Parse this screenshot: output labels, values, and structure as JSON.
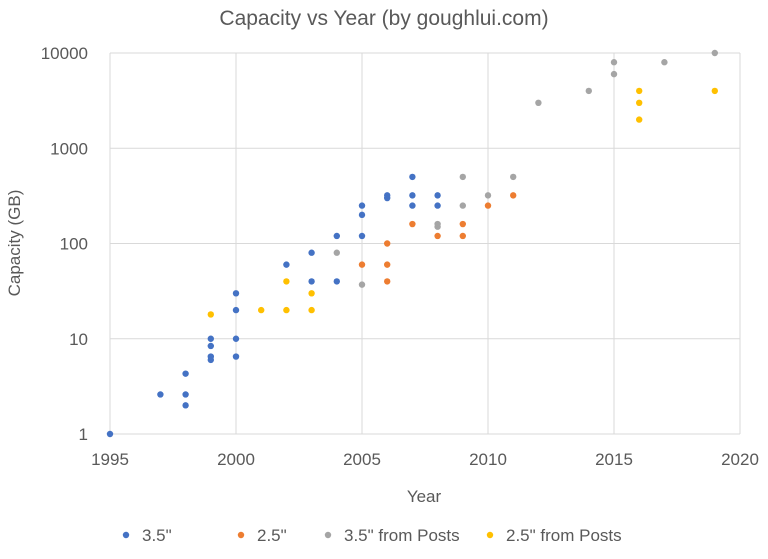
{
  "chart_data": {
    "type": "scatter",
    "title": "Capacity vs Year (by goughlui.com)",
    "xlabel": "Year",
    "ylabel": "Capacity (GB)",
    "xlim": [
      1995,
      2020
    ],
    "ylim": [
      1,
      10000
    ],
    "yscale": "log",
    "x_ticks": [
      1995,
      2000,
      2005,
      2010,
      2015,
      2020
    ],
    "y_ticks": [
      1,
      10,
      100,
      1000,
      10000
    ],
    "grid": true,
    "legend_position": "bottom",
    "series": [
      {
        "name": "3.5\"",
        "color": "#4472c4",
        "points": [
          [
            1995,
            1
          ],
          [
            1997,
            2.6
          ],
          [
            1998,
            2
          ],
          [
            1998,
            2.6
          ],
          [
            1998,
            4.3
          ],
          [
            1999,
            6
          ],
          [
            1999,
            6.5
          ],
          [
            1999,
            8.4
          ],
          [
            1999,
            10
          ],
          [
            2000,
            6.5
          ],
          [
            2000,
            10
          ],
          [
            2000,
            20
          ],
          [
            2000,
            30
          ],
          [
            2002,
            60
          ],
          [
            2003,
            40
          ],
          [
            2003,
            80
          ],
          [
            2004,
            40
          ],
          [
            2004,
            120
          ],
          [
            2005,
            120
          ],
          [
            2005,
            200
          ],
          [
            2005,
            250
          ],
          [
            2006,
            300
          ],
          [
            2006,
            320
          ],
          [
            2007,
            250
          ],
          [
            2007,
            320
          ],
          [
            2007,
            500
          ],
          [
            2008,
            250
          ],
          [
            2008,
            320
          ]
        ]
      },
      {
        "name": "2.5\"",
        "color": "#ed7d31",
        "points": [
          [
            2005,
            60
          ],
          [
            2006,
            40
          ],
          [
            2006,
            60
          ],
          [
            2006,
            100
          ],
          [
            2007,
            160
          ],
          [
            2008,
            120
          ],
          [
            2009,
            120
          ],
          [
            2009,
            160
          ],
          [
            2010,
            250
          ],
          [
            2011,
            320
          ]
        ]
      },
      {
        "name": "3.5\" from Posts",
        "color": "#a5a5a5",
        "points": [
          [
            2004,
            80
          ],
          [
            2005,
            37
          ],
          [
            2008,
            150
          ],
          [
            2008,
            160
          ],
          [
            2009,
            250
          ],
          [
            2009,
            500
          ],
          [
            2010,
            320
          ],
          [
            2011,
            500
          ],
          [
            2012,
            3000
          ],
          [
            2014,
            4000
          ],
          [
            2015,
            6000
          ],
          [
            2015,
            8000
          ],
          [
            2017,
            8000
          ],
          [
            2019,
            10000
          ]
        ]
      },
      {
        "name": "2.5\" from Posts",
        "color": "#ffc000",
        "points": [
          [
            1999,
            18
          ],
          [
            2001,
            20
          ],
          [
            2002,
            20
          ],
          [
            2002,
            40
          ],
          [
            2003,
            20
          ],
          [
            2003,
            30
          ],
          [
            2016,
            2000
          ],
          [
            2016,
            3000
          ],
          [
            2016,
            4000
          ],
          [
            2019,
            4000
          ]
        ]
      }
    ]
  }
}
